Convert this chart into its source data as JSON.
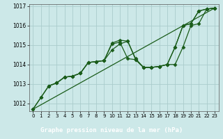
{
  "xlabel": "Graphe pression niveau de la mer (hPa)",
  "background_color": "#cce8e8",
  "label_bg_color": "#2d6e2d",
  "label_text_color": "#ffffff",
  "grid_color": "#aacccc",
  "line_color": "#1a5c1a",
  "xlim": [
    -0.5,
    23.5
  ],
  "ylim": [
    1011.6,
    1017.1
  ],
  "yticks": [
    1012,
    1013,
    1014,
    1015,
    1016,
    1017
  ],
  "xticks": [
    0,
    1,
    2,
    3,
    4,
    5,
    6,
    7,
    8,
    9,
    10,
    11,
    12,
    13,
    14,
    15,
    16,
    17,
    18,
    19,
    20,
    21,
    22,
    23
  ],
  "series": [
    {
      "x": [
        0,
        1,
        2,
        3,
        4,
        5,
        6,
        7,
        8,
        9,
        10,
        11,
        12,
        13,
        14,
        15,
        16,
        17,
        18,
        19,
        20,
        21,
        22,
        23
      ],
      "y": [
        1011.7,
        1012.3,
        1012.9,
        1013.05,
        1013.35,
        1013.4,
        1013.55,
        1014.1,
        1014.15,
        1014.2,
        1014.75,
        1015.05,
        1015.2,
        1014.25,
        1013.85,
        1013.85,
        1013.9,
        1014.0,
        1014.9,
        1016.0,
        1016.1,
        1016.75,
        1016.85,
        1016.9
      ],
      "marker": true
    },
    {
      "x": [
        0,
        1,
        2,
        3,
        4,
        5,
        6,
        7,
        8,
        9,
        10,
        11,
        12,
        13,
        14,
        15,
        16,
        17,
        18,
        19,
        20,
        21,
        22,
        23
      ],
      "y": [
        1011.7,
        1012.3,
        1012.9,
        1013.05,
        1013.35,
        1013.4,
        1013.55,
        1014.1,
        1014.15,
        1014.2,
        1015.1,
        1015.25,
        1015.2,
        1014.3,
        1013.85,
        1013.85,
        1013.9,
        1014.0,
        1014.9,
        1016.0,
        1016.1,
        1016.75,
        1016.85,
        1016.9
      ],
      "marker": true
    },
    {
      "x": [
        2,
        3,
        4,
        5,
        6,
        7,
        8,
        9,
        10,
        11,
        12,
        13,
        14,
        15,
        16,
        17,
        18,
        19,
        20,
        21,
        22,
        23
      ],
      "y": [
        1012.9,
        1013.05,
        1013.35,
        1013.4,
        1013.55,
        1014.1,
        1014.15,
        1014.2,
        1015.05,
        1015.15,
        1014.3,
        1014.25,
        1013.85,
        1013.85,
        1013.9,
        1014.0,
        1014.0,
        1014.9,
        1016.0,
        1016.1,
        1016.85,
        1016.9
      ],
      "marker": true
    },
    {
      "x": [
        0,
        23
      ],
      "y": [
        1011.7,
        1016.9
      ],
      "marker": false
    }
  ],
  "marker_style": "D",
  "markersize": 2.5,
  "linewidth": 0.9,
  "label_fontsize": 6.5,
  "tick_fontsize": 5.5
}
